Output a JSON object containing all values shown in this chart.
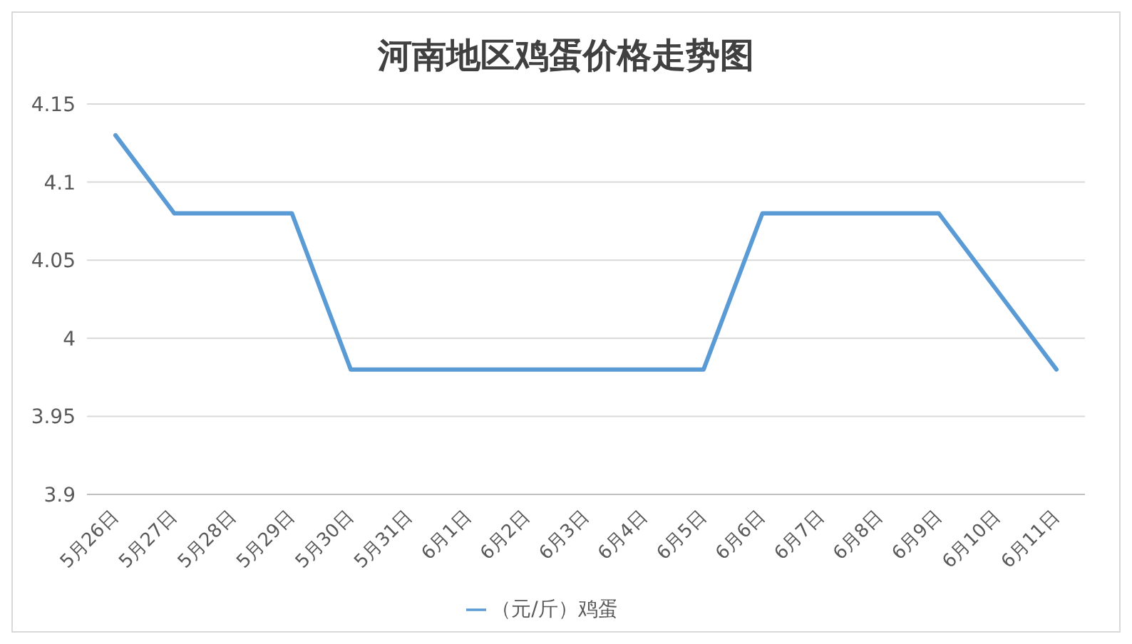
{
  "chart_data": {
    "type": "line",
    "title": "河南地区鸡蛋价格走势图",
    "categories": [
      "5月26日",
      "5月27日",
      "5月28日",
      "5月29日",
      "5月30日",
      "5月31日",
      "6月1日",
      "6月2日",
      "6月3日",
      "6月4日",
      "6月5日",
      "6月6日",
      "6月7日",
      "6月8日",
      "6月9日",
      "6月10日",
      "6月11日"
    ],
    "series": [
      {
        "name": "（元/斤）鸡蛋",
        "color": "#5b9bd5",
        "values": [
          4.13,
          4.08,
          4.08,
          4.08,
          3.98,
          3.98,
          3.98,
          3.98,
          3.98,
          3.98,
          3.98,
          4.08,
          4.08,
          4.08,
          4.08,
          4.03,
          3.98
        ]
      }
    ],
    "ylim": [
      3.9,
      4.15
    ],
    "yticks": [
      3.9,
      3.95,
      4,
      4.05,
      4.1,
      4.15
    ],
    "grid": "y",
    "legend": "bottom",
    "marker": "none",
    "line_style": "solid"
  }
}
